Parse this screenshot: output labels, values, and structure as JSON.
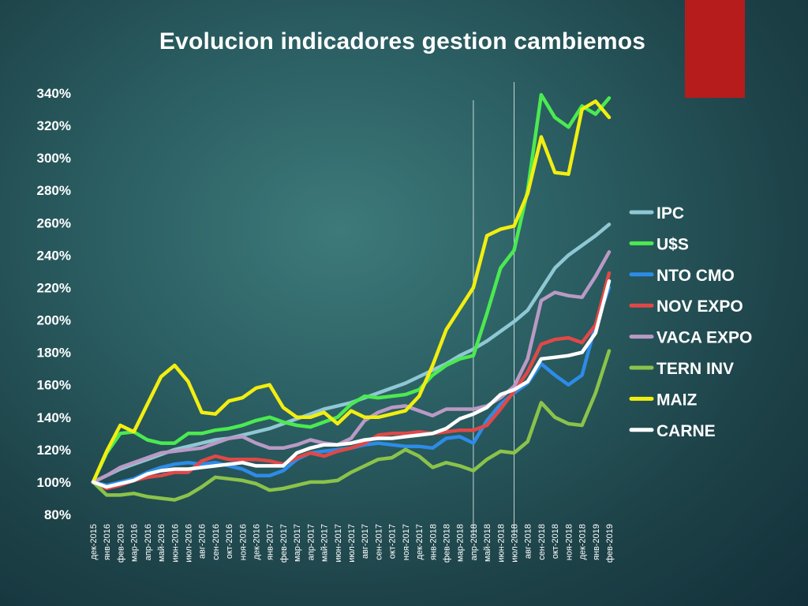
{
  "slide": {
    "title": "Evolucion indicadores gestion cambiemos",
    "accent_color": "#b61c1c"
  },
  "chart_data": {
    "type": "line",
    "title": "Evolucion indicadores gestion cambiemos",
    "xlabel": "",
    "ylabel": "",
    "ylim": [
      0.8,
      3.4
    ],
    "y_ticks": [
      0.8,
      1.0,
      1.2,
      1.4,
      1.6,
      1.8,
      2.0,
      2.2,
      2.4,
      2.6,
      2.8,
      3.0,
      3.2,
      3.4
    ],
    "y_tick_labels": [
      "80%",
      "100%",
      "120%",
      "140%",
      "160%",
      "180%",
      "200%",
      "220%",
      "240%",
      "260%",
      "280%",
      "300%",
      "320%",
      "340%"
    ],
    "grid": false,
    "legend_position": "right",
    "x": [
      "дек-2015",
      "янв-2016",
      "фев-2016",
      "мар-2016",
      "апр-2016",
      "май-2016",
      "июн-2016",
      "июл-2016",
      "авг-2016",
      "сен-2016",
      "окт-2016",
      "ноя-2016",
      "дек-2016",
      "янв-2017",
      "фев-2017",
      "мар-2017",
      "апр-2017",
      "май-2017",
      "июн-2017",
      "июл-2017",
      "авг-2017",
      "сен-2017",
      "окт-2017",
      "ноя-2017",
      "дек-2017",
      "янв-2018",
      "фев-2018",
      "мар-2018",
      "апр-2018",
      "май-2018",
      "июн-2018",
      "июл-2018",
      "авг-2018",
      "сен-2018",
      "окт-2018",
      "ноя-2018",
      "дек-2018",
      "янв-2019",
      "фев-2019"
    ],
    "vertical_markers": [
      "апр-2018",
      "июл-2018"
    ],
    "series": [
      {
        "name": "IPC",
        "color": "#8fc8d4",
        "values": [
          1.0,
          1.04,
          1.08,
          1.11,
          1.14,
          1.17,
          1.2,
          1.22,
          1.24,
          1.26,
          1.27,
          1.29,
          1.31,
          1.33,
          1.36,
          1.39,
          1.42,
          1.45,
          1.47,
          1.49,
          1.52,
          1.55,
          1.58,
          1.61,
          1.65,
          1.69,
          1.73,
          1.78,
          1.82,
          1.87,
          1.93,
          1.99,
          2.06,
          2.19,
          2.32,
          2.4,
          2.46,
          2.52,
          2.59
        ]
      },
      {
        "name": "U$S",
        "color": "#4bea50",
        "values": [
          1.0,
          1.18,
          1.3,
          1.31,
          1.26,
          1.24,
          1.24,
          1.3,
          1.3,
          1.32,
          1.33,
          1.35,
          1.38,
          1.4,
          1.37,
          1.35,
          1.34,
          1.37,
          1.4,
          1.48,
          1.53,
          1.52,
          1.53,
          1.54,
          1.57,
          1.66,
          1.72,
          1.76,
          1.78,
          2.04,
          2.32,
          2.43,
          2.8,
          3.39,
          3.25,
          3.19,
          3.32,
          3.27,
          3.37
        ]
      },
      {
        "name": "NTO CMO",
        "color": "#2d8ce8",
        "values": [
          1.0,
          0.98,
          1.0,
          1.02,
          1.06,
          1.09,
          1.11,
          1.12,
          1.11,
          1.12,
          1.1,
          1.08,
          1.04,
          1.04,
          1.07,
          1.14,
          1.18,
          1.19,
          1.2,
          1.21,
          1.23,
          1.24,
          1.23,
          1.22,
          1.22,
          1.21,
          1.27,
          1.28,
          1.24,
          1.38,
          1.48,
          1.55,
          1.61,
          1.73,
          1.66,
          1.6,
          1.66,
          1.97,
          2.2
        ]
      },
      {
        "name": "NOV EXPO",
        "color": "#e04848",
        "values": [
          1.0,
          0.96,
          0.98,
          1.01,
          1.03,
          1.04,
          1.06,
          1.06,
          1.13,
          1.16,
          1.14,
          1.14,
          1.14,
          1.13,
          1.11,
          1.15,
          1.18,
          1.16,
          1.19,
          1.21,
          1.24,
          1.29,
          1.3,
          1.3,
          1.31,
          1.3,
          1.31,
          1.32,
          1.32,
          1.35,
          1.45,
          1.56,
          1.68,
          1.85,
          1.88,
          1.89,
          1.86,
          1.97,
          2.29
        ]
      },
      {
        "name": "VACA EXPO",
        "color": "#b99ac4",
        "values": [
          1.0,
          1.04,
          1.09,
          1.12,
          1.15,
          1.18,
          1.19,
          1.2,
          1.21,
          1.24,
          1.27,
          1.28,
          1.24,
          1.21,
          1.21,
          1.23,
          1.26,
          1.24,
          1.23,
          1.27,
          1.38,
          1.43,
          1.46,
          1.47,
          1.44,
          1.41,
          1.45,
          1.45,
          1.45,
          1.47,
          1.52,
          1.59,
          1.76,
          2.12,
          2.17,
          2.15,
          2.14,
          2.27,
          2.42
        ]
      },
      {
        "name": "TERN INV",
        "color": "#8bc34a",
        "values": [
          1.0,
          0.92,
          0.92,
          0.93,
          0.91,
          0.9,
          0.89,
          0.92,
          0.97,
          1.03,
          1.02,
          1.01,
          0.99,
          0.95,
          0.96,
          0.98,
          1.0,
          1.0,
          1.01,
          1.06,
          1.1,
          1.14,
          1.15,
          1.2,
          1.16,
          1.09,
          1.12,
          1.1,
          1.07,
          1.14,
          1.19,
          1.18,
          1.25,
          1.49,
          1.4,
          1.36,
          1.35,
          1.55,
          1.81
        ]
      },
      {
        "name": "MAIZ",
        "color": "#f2ee10",
        "values": [
          1.0,
          1.19,
          1.35,
          1.31,
          1.48,
          1.65,
          1.72,
          1.62,
          1.43,
          1.42,
          1.5,
          1.52,
          1.58,
          1.6,
          1.46,
          1.4,
          1.4,
          1.43,
          1.36,
          1.44,
          1.4,
          1.4,
          1.42,
          1.44,
          1.53,
          1.72,
          1.94,
          2.07,
          2.2,
          2.52,
          2.56,
          2.58,
          2.78,
          3.13,
          2.91,
          2.9,
          3.3,
          3.35,
          3.25
        ]
      },
      {
        "name": "CARNE",
        "color": "#ffffff",
        "values": [
          1.0,
          0.97,
          0.99,
          1.01,
          1.05,
          1.07,
          1.08,
          1.08,
          1.09,
          1.1,
          1.11,
          1.12,
          1.1,
          1.1,
          1.1,
          1.18,
          1.21,
          1.23,
          1.23,
          1.24,
          1.26,
          1.27,
          1.27,
          1.28,
          1.29,
          1.3,
          1.33,
          1.39,
          1.42,
          1.46,
          1.54,
          1.57,
          1.62,
          1.76,
          1.77,
          1.78,
          1.8,
          1.92,
          2.24
        ]
      }
    ]
  }
}
